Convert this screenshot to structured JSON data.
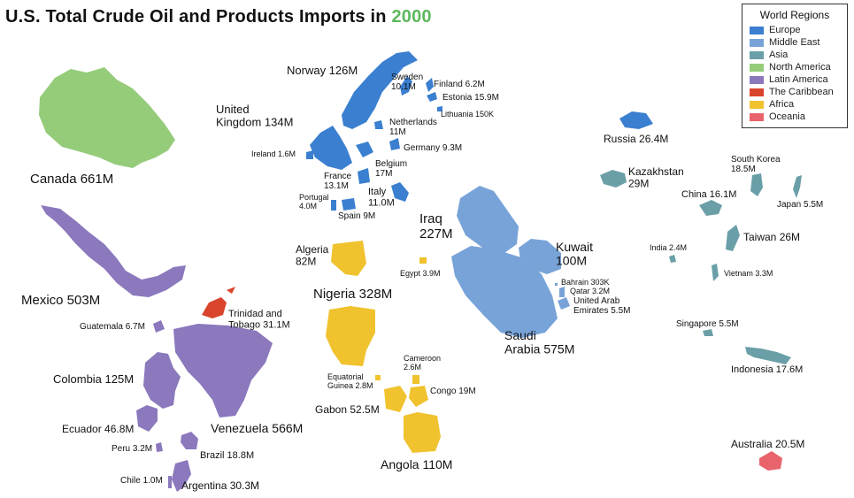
{
  "title": {
    "text": "U.S. Total Crude Oil and Products Imports in ",
    "year": "2000"
  },
  "legend": {
    "title": "World Regions",
    "items": [
      {
        "label": "Europe",
        "color": "#3a7fd0"
      },
      {
        "label": "Middle East",
        "color": "#78a3d8"
      },
      {
        "label": "Asia",
        "color": "#6a9fa8"
      },
      {
        "label": "North America",
        "color": "#95cc7a"
      },
      {
        "label": "Latin America",
        "color": "#8b78bd"
      },
      {
        "label": "The Caribbean",
        "color": "#d9452c"
      },
      {
        "label": "Africa",
        "color": "#f0c22e"
      },
      {
        "label": "Oceania",
        "color": "#e8636b"
      }
    ]
  },
  "countries": {
    "canada": {
      "lines": [
        "Canada 661M"
      ],
      "region": "North America"
    },
    "mexico": {
      "lines": [
        "Mexico 503M"
      ],
      "region": "Latin America"
    },
    "guatemala": {
      "lines": [
        "Guatemala 6.7M"
      ],
      "region": "Latin America"
    },
    "colombia": {
      "lines": [
        "Colombia 125M"
      ],
      "region": "Latin America"
    },
    "ecuador": {
      "lines": [
        "Ecuador 46.8M"
      ],
      "region": "Latin America"
    },
    "peru": {
      "lines": [
        "Peru 3.2M"
      ],
      "region": "Latin America"
    },
    "chile": {
      "lines": [
        "Chile 1.0M"
      ],
      "region": "Latin America"
    },
    "argentina": {
      "lines": [
        "Argentina 30.3M"
      ],
      "region": "Latin America"
    },
    "brazil": {
      "lines": [
        "Brazil 18.8M"
      ],
      "region": "Latin America"
    },
    "venezuela": {
      "lines": [
        "Venezuela 566M"
      ],
      "region": "Latin America"
    },
    "trinidad": {
      "lines": [
        "Trinidad and",
        "Tobago 31.1M"
      ],
      "region": "The Caribbean"
    },
    "norway": {
      "lines": [
        "Norway 126M"
      ],
      "region": "Europe"
    },
    "uk": {
      "lines": [
        "United",
        "Kingdom 134M"
      ],
      "region": "Europe"
    },
    "ireland": {
      "lines": [
        "Ireland 1.6M"
      ],
      "region": "Europe"
    },
    "sweden": {
      "lines": [
        "Sweden",
        "10.1M"
      ],
      "region": "Europe"
    },
    "finland": {
      "lines": [
        "Finland  6.2M"
      ],
      "region": "Europe"
    },
    "estonia": {
      "lines": [
        "Estonia  15.9M"
      ],
      "region": "Europe"
    },
    "lithuania": {
      "lines": [
        "Lithuania 150K"
      ],
      "region": "Europe"
    },
    "netherlands": {
      "lines": [
        "Netherlands",
        "11M"
      ],
      "region": "Europe"
    },
    "germany": {
      "lines": [
        "Germany 9.3M"
      ],
      "region": "Europe"
    },
    "belgium": {
      "lines": [
        "Belgium",
        "17M"
      ],
      "region": "Europe"
    },
    "france": {
      "lines": [
        "France",
        "13.1M"
      ],
      "region": "Europe"
    },
    "portugal": {
      "lines": [
        "Portugal",
        "4.0M"
      ],
      "region": "Europe"
    },
    "spain": {
      "lines": [
        "Spain 9M"
      ],
      "region": "Europe"
    },
    "italy": {
      "lines": [
        "Italy",
        "11.0M"
      ],
      "region": "Europe"
    },
    "algeria": {
      "lines": [
        "Algeria",
        "82M"
      ],
      "region": "Africa"
    },
    "nigeria": {
      "lines": [
        "Nigeria  328M"
      ],
      "region": "Africa"
    },
    "egypt": {
      "lines": [
        "Egypt 3.9M"
      ],
      "region": "Africa"
    },
    "cameroon": {
      "lines": [
        "Cameroon",
        "2.6M"
      ],
      "region": "Africa"
    },
    "eqguinea": {
      "lines": [
        "Equatorial",
        "Guinea 2.8M"
      ],
      "region": "Africa"
    },
    "congo": {
      "lines": [
        "Congo 19M"
      ],
      "region": "Africa"
    },
    "gabon": {
      "lines": [
        "Gabon 52.5M"
      ],
      "region": "Africa"
    },
    "angola": {
      "lines": [
        "Angola 110M"
      ],
      "region": "Africa"
    },
    "iraq": {
      "lines": [
        "Iraq",
        "227M"
      ],
      "region": "Middle East"
    },
    "kuwait": {
      "lines": [
        "Kuwait",
        "100M"
      ],
      "region": "Middle East"
    },
    "bahrain": {
      "lines": [
        "Bahrain 303K"
      ],
      "region": "Middle East"
    },
    "qatar": {
      "lines": [
        "Qatar 3.2M"
      ],
      "region": "Middle East"
    },
    "uae": {
      "lines": [
        "United Arab",
        "Emirates 5.5M"
      ],
      "region": "Middle East"
    },
    "saudi": {
      "lines": [
        "Saudi",
        "Arabia 575M"
      ],
      "region": "Middle East"
    },
    "russia": {
      "lines": [
        "Russia 26.4M"
      ],
      "region": "Europe"
    },
    "kazakhstan": {
      "lines": [
        "Kazakhstan",
        "29M"
      ],
      "region": "Asia"
    },
    "southkorea": {
      "lines": [
        "South Korea",
        "18.5M"
      ],
      "region": "Asia"
    },
    "china": {
      "lines": [
        "China 16.1M"
      ],
      "region": "Asia"
    },
    "japan": {
      "lines": [
        "Japan 5.5M"
      ],
      "region": "Asia"
    },
    "taiwan": {
      "lines": [
        "Taiwan 26M"
      ],
      "region": "Asia"
    },
    "india": {
      "lines": [
        "India 2.4M"
      ],
      "region": "Asia"
    },
    "vietnam": {
      "lines": [
        "Vietnam 3.3M"
      ],
      "region": "Asia"
    },
    "singapore": {
      "lines": [
        "Singapore 5.5M"
      ],
      "region": "Asia"
    },
    "indonesia": {
      "lines": [
        "Indonesia 17.6M"
      ],
      "region": "Asia"
    },
    "australia": {
      "lines": [
        "Australia 20.5M"
      ],
      "region": "Oceania"
    }
  }
}
